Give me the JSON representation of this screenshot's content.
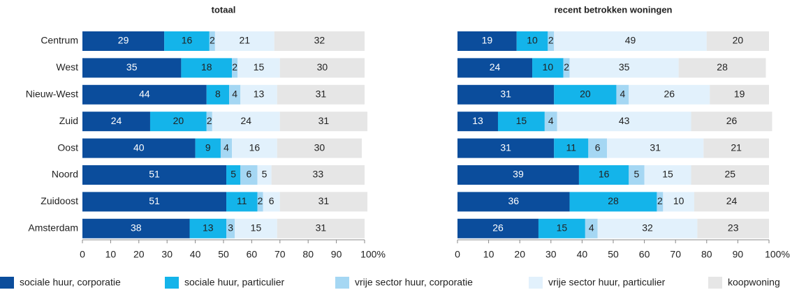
{
  "chart_data": [
    {
      "type": "stacked-bar-horizontal",
      "title": "totaal",
      "categories": [
        "Centrum",
        "West",
        "Nieuw-West",
        "Zuid",
        "Oost",
        "Noord",
        "Zuidoost",
        "Amsterdam"
      ],
      "series": [
        {
          "name": "sociale huur, corporatie",
          "color": "#0b4d9c",
          "values": [
            29,
            35,
            44,
            24,
            40,
            51,
            51,
            38
          ]
        },
        {
          "name": "sociale huur, particulier",
          "color": "#14b4ea",
          "values": [
            16,
            18,
            8,
            20,
            9,
            5,
            11,
            13
          ]
        },
        {
          "name": "vrije sector huur, corporatie",
          "color": "#a5d7f3",
          "values": [
            2,
            2,
            4,
            2,
            4,
            6,
            2,
            3
          ]
        },
        {
          "name": "vrije sector huur, particulier",
          "color": "#e2f1fc",
          "values": [
            21,
            15,
            13,
            24,
            16,
            5,
            6,
            15
          ]
        },
        {
          "name": "koopwoning",
          "color": "#e6e6e6",
          "values": [
            32,
            30,
            31,
            31,
            30,
            33,
            31,
            31
          ]
        }
      ],
      "xlim": [
        0,
        100
      ],
      "xticks": [
        0,
        10,
        20,
        30,
        40,
        50,
        60,
        70,
        80,
        90,
        {
          "value": 100,
          "label": "100%"
        }
      ]
    },
    {
      "type": "stacked-bar-horizontal",
      "title": "recent betrokken woningen",
      "series": [
        {
          "values": [
            19,
            24,
            31,
            13,
            31,
            39,
            36,
            26
          ]
        },
        {
          "values": [
            10,
            10,
            20,
            15,
            11,
            16,
            28,
            15
          ]
        },
        {
          "values": [
            2,
            2,
            4,
            4,
            6,
            5,
            2,
            4
          ]
        },
        {
          "values": [
            49,
            35,
            26,
            43,
            31,
            15,
            10,
            32
          ]
        },
        {
          "values": [
            20,
            28,
            19,
            26,
            21,
            25,
            24,
            23
          ]
        }
      ],
      "xlim": [
        0,
        100
      ],
      "xticks": [
        0,
        10,
        20,
        30,
        40,
        50,
        60,
        70,
        80,
        90,
        {
          "value": 100,
          "label": "100%"
        }
      ]
    }
  ]
}
